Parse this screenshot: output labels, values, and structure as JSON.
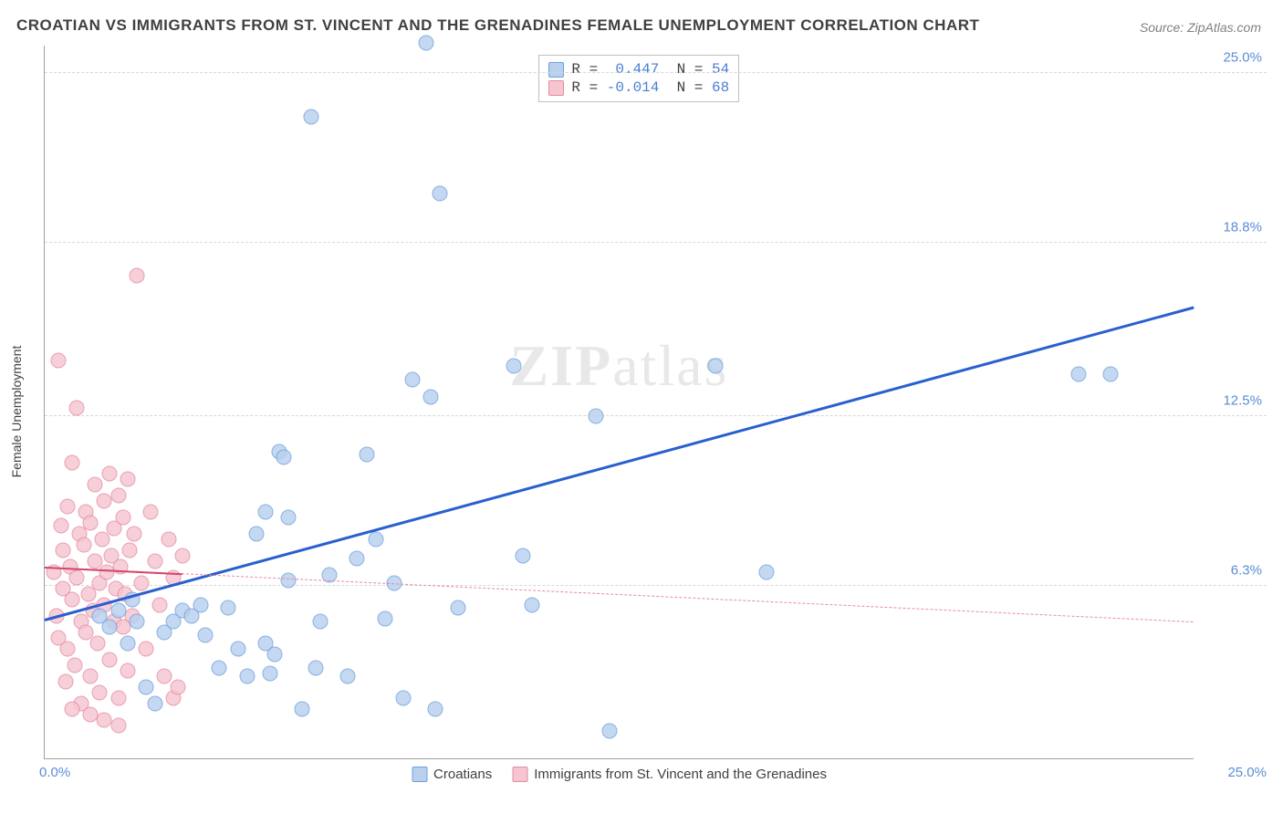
{
  "title": "CROATIAN VS IMMIGRANTS FROM ST. VINCENT AND THE GRENADINES FEMALE UNEMPLOYMENT CORRELATION CHART",
  "source": "Source: ZipAtlas.com",
  "ylabel": "Female Unemployment",
  "watermark_a": "ZIP",
  "watermark_b": "atlas",
  "chart": {
    "type": "scatter",
    "background_color": "#ffffff",
    "grid_color": "#d8d8d8",
    "axis_color": "#a0a0a0",
    "xlim": [
      0,
      25
    ],
    "ylim": [
      0,
      26
    ],
    "yticks": [
      {
        "v": 6.3,
        "label": "6.3%"
      },
      {
        "v": 12.5,
        "label": "12.5%"
      },
      {
        "v": 18.8,
        "label": "18.8%"
      },
      {
        "v": 25.0,
        "label": "25.0%"
      }
    ],
    "xtick_labels": {
      "min": "0.0%",
      "max": "25.0%"
    },
    "series": [
      {
        "name": "Croatians",
        "fill": "#b8d0ee",
        "stroke": "#6fa0dd",
        "stroke_w": 1.2,
        "trend": {
          "y0": 5.1,
          "y1": 16.5,
          "color": "#2a5fd0",
          "width": 3,
          "dash": false
        },
        "stats": {
          "R": "0.447",
          "N": "54"
        },
        "points": [
          [
            1.2,
            5.2
          ],
          [
            1.6,
            5.4
          ],
          [
            1.8,
            4.2
          ],
          [
            1.9,
            5.8
          ],
          [
            2.0,
            5.0
          ],
          [
            2.2,
            2.6
          ],
          [
            2.4,
            2.0
          ],
          [
            3.4,
            5.6
          ],
          [
            3.5,
            4.5
          ],
          [
            3.8,
            3.3
          ],
          [
            4.4,
            3.0
          ],
          [
            4.6,
            8.2
          ],
          [
            4.8,
            9.0
          ],
          [
            4.9,
            3.1
          ],
          [
            4.8,
            4.2
          ],
          [
            5.0,
            3.8
          ],
          [
            5.1,
            11.2
          ],
          [
            5.2,
            11.0
          ],
          [
            5.3,
            8.8
          ],
          [
            5.3,
            6.5
          ],
          [
            5.6,
            1.8
          ],
          [
            5.8,
            23.4
          ],
          [
            6.2,
            6.7
          ],
          [
            6.6,
            3.0
          ],
          [
            6.8,
            7.3
          ],
          [
            7.0,
            11.1
          ],
          [
            7.2,
            8.0
          ],
          [
            7.4,
            5.1
          ],
          [
            7.6,
            6.4
          ],
          [
            8.0,
            13.8
          ],
          [
            8.3,
            26.1
          ],
          [
            8.4,
            13.2
          ],
          [
            8.5,
            1.8
          ],
          [
            8.6,
            20.6
          ],
          [
            10.2,
            14.3
          ],
          [
            10.4,
            7.4
          ],
          [
            10.6,
            5.6
          ],
          [
            12.0,
            12.5
          ],
          [
            12.3,
            1.0
          ],
          [
            14.6,
            14.3
          ],
          [
            15.7,
            6.8
          ],
          [
            22.5,
            14.0
          ],
          [
            23.2,
            14.0
          ],
          [
            5.9,
            3.3
          ],
          [
            3.0,
            5.4
          ],
          [
            4.2,
            4.0
          ],
          [
            6.0,
            5.0
          ],
          [
            7.8,
            2.2
          ],
          [
            9.0,
            5.5
          ],
          [
            2.8,
            5.0
          ],
          [
            1.4,
            4.8
          ],
          [
            2.6,
            4.6
          ],
          [
            3.2,
            5.2
          ],
          [
            4.0,
            5.5
          ]
        ]
      },
      {
        "name": "Immigrants from St. Vincent and the Grenadines",
        "fill": "#f6c5d0",
        "stroke": "#e58ba2",
        "stroke_w": 1.2,
        "trend": {
          "y0": 7.0,
          "y1": 5.0,
          "color": "#e58ba2",
          "width": 1.5,
          "dash": true
        },
        "stats": {
          "R": "-0.014",
          "N": "68"
        },
        "points": [
          [
            0.2,
            6.8
          ],
          [
            0.25,
            5.2
          ],
          [
            0.3,
            4.4
          ],
          [
            0.3,
            14.5
          ],
          [
            0.35,
            8.5
          ],
          [
            0.4,
            7.6
          ],
          [
            0.4,
            6.2
          ],
          [
            0.45,
            2.8
          ],
          [
            0.5,
            9.2
          ],
          [
            0.5,
            4.0
          ],
          [
            0.55,
            7.0
          ],
          [
            0.6,
            10.8
          ],
          [
            0.6,
            5.8
          ],
          [
            0.65,
            3.4
          ],
          [
            0.7,
            12.8
          ],
          [
            0.7,
            6.6
          ],
          [
            0.75,
            8.2
          ],
          [
            0.8,
            5.0
          ],
          [
            0.8,
            2.0
          ],
          [
            0.85,
            7.8
          ],
          [
            0.9,
            4.6
          ],
          [
            0.9,
            9.0
          ],
          [
            0.95,
            6.0
          ],
          [
            1.0,
            3.0
          ],
          [
            1.0,
            8.6
          ],
          [
            1.05,
            5.4
          ],
          [
            1.1,
            10.0
          ],
          [
            1.1,
            7.2
          ],
          [
            1.15,
            4.2
          ],
          [
            1.2,
            6.4
          ],
          [
            1.2,
            2.4
          ],
          [
            1.25,
            8.0
          ],
          [
            1.3,
            5.6
          ],
          [
            1.3,
            9.4
          ],
          [
            1.35,
            6.8
          ],
          [
            1.4,
            3.6
          ],
          [
            1.4,
            10.4
          ],
          [
            1.45,
            7.4
          ],
          [
            1.5,
            5.0
          ],
          [
            1.5,
            8.4
          ],
          [
            1.55,
            6.2
          ],
          [
            1.6,
            2.2
          ],
          [
            1.6,
            9.6
          ],
          [
            1.65,
            7.0
          ],
          [
            1.7,
            4.8
          ],
          [
            1.7,
            8.8
          ],
          [
            1.75,
            6.0
          ],
          [
            1.8,
            3.2
          ],
          [
            1.8,
            10.2
          ],
          [
            1.85,
            7.6
          ],
          [
            1.9,
            5.2
          ],
          [
            1.95,
            8.2
          ],
          [
            2.0,
            17.6
          ],
          [
            2.1,
            6.4
          ],
          [
            2.2,
            4.0
          ],
          [
            2.3,
            9.0
          ],
          [
            2.4,
            7.2
          ],
          [
            2.5,
            5.6
          ],
          [
            2.6,
            3.0
          ],
          [
            2.7,
            8.0
          ],
          [
            2.8,
            2.2
          ],
          [
            2.8,
            6.6
          ],
          [
            2.9,
            2.6
          ],
          [
            3.0,
            7.4
          ],
          [
            0.6,
            1.8
          ],
          [
            1.0,
            1.6
          ],
          [
            1.3,
            1.4
          ],
          [
            1.6,
            1.2
          ]
        ]
      }
    ]
  }
}
